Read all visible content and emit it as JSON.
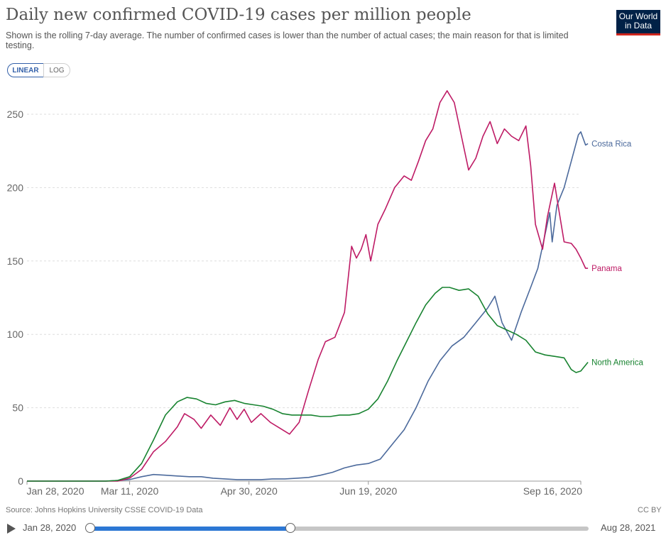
{
  "header": {
    "title": "Daily new confirmed COVID-19 cases per million people",
    "subtitle": "Shown is the rolling 7-day average. The number of confirmed cases is lower than the number of actual cases; the main reason for that is limited testing.",
    "logo_line1": "Our World",
    "logo_line2": "in Data"
  },
  "controls": {
    "linear_label": "LINEAR",
    "log_label": "LOG",
    "active": "LINEAR"
  },
  "footer": {
    "source": "Source: Johns Hopkins University CSSE COVID-19 Data",
    "license": "CC BY"
  },
  "timeline": {
    "start_label": "Jan 28, 2020",
    "end_label": "Aug 28, 2021",
    "range_start": "2020-01-28",
    "range_end": "2021-08-28",
    "selected_start": "2020-01-28",
    "selected_end": "2020-09-16"
  },
  "chart_data": {
    "type": "line",
    "title": "Daily new confirmed COVID-19 cases per million people",
    "xlabel": "",
    "ylabel": "",
    "x_ticks": [
      "Jan 28, 2020",
      "Mar 11, 2020",
      "Apr 30, 2020",
      "Jun 19, 2020",
      "Sep 16, 2020"
    ],
    "x_tick_dates": [
      "2020-01-28",
      "2020-03-11",
      "2020-04-30",
      "2020-06-19",
      "2020-09-16"
    ],
    "xlim": [
      "2020-01-28",
      "2020-09-16"
    ],
    "y_ticks": [
      0,
      50,
      100,
      150,
      200,
      250
    ],
    "ylim": [
      0,
      265
    ],
    "grid": "horizontal-dashed",
    "legend": "line-end labels",
    "series": [
      {
        "name": "Costa Rica",
        "color": "#4c6a9c",
        "points": [
          [
            "2020-01-28",
            0
          ],
          [
            "2020-03-01",
            0
          ],
          [
            "2020-03-06",
            0.5
          ],
          [
            "2020-03-11",
            1
          ],
          [
            "2020-03-16",
            3
          ],
          [
            "2020-03-21",
            4.5
          ],
          [
            "2020-03-26",
            4
          ],
          [
            "2020-03-31",
            3.5
          ],
          [
            "2020-04-05",
            3
          ],
          [
            "2020-04-10",
            3
          ],
          [
            "2020-04-15",
            2
          ],
          [
            "2020-04-20",
            1.5
          ],
          [
            "2020-04-25",
            1
          ],
          [
            "2020-04-30",
            1
          ],
          [
            "2020-05-05",
            1
          ],
          [
            "2020-05-10",
            1.5
          ],
          [
            "2020-05-15",
            1.5
          ],
          [
            "2020-05-20",
            2
          ],
          [
            "2020-05-25",
            2.5
          ],
          [
            "2020-05-30",
            4
          ],
          [
            "2020-06-04",
            6
          ],
          [
            "2020-06-09",
            9
          ],
          [
            "2020-06-14",
            11
          ],
          [
            "2020-06-19",
            12
          ],
          [
            "2020-06-24",
            15
          ],
          [
            "2020-06-29",
            25
          ],
          [
            "2020-07-04",
            35
          ],
          [
            "2020-07-09",
            50
          ],
          [
            "2020-07-14",
            68
          ],
          [
            "2020-07-19",
            82
          ],
          [
            "2020-07-24",
            92
          ],
          [
            "2020-07-29",
            98
          ],
          [
            "2020-08-03",
            108
          ],
          [
            "2020-08-08",
            118
          ],
          [
            "2020-08-11",
            126
          ],
          [
            "2020-08-14",
            108
          ],
          [
            "2020-08-18",
            96
          ],
          [
            "2020-08-22",
            115
          ],
          [
            "2020-08-26",
            132
          ],
          [
            "2020-08-29",
            145
          ],
          [
            "2020-09-01",
            168
          ],
          [
            "2020-09-03",
            183
          ],
          [
            "2020-09-04",
            163
          ],
          [
            "2020-09-06",
            188
          ],
          [
            "2020-09-09",
            200
          ],
          [
            "2020-09-12",
            218
          ],
          [
            "2020-09-15",
            236
          ],
          [
            "2020-09-16",
            238
          ],
          [
            "2020-09-18",
            229
          ],
          [
            "2020-09-19",
            230
          ]
        ]
      },
      {
        "name": "Panama",
        "color": "#be1b65",
        "points": [
          [
            "2020-01-28",
            0
          ],
          [
            "2020-03-06",
            0
          ],
          [
            "2020-03-11",
            2
          ],
          [
            "2020-03-16",
            8
          ],
          [
            "2020-03-21",
            20
          ],
          [
            "2020-03-26",
            27
          ],
          [
            "2020-03-31",
            37
          ],
          [
            "2020-04-03",
            46
          ],
          [
            "2020-04-07",
            42
          ],
          [
            "2020-04-10",
            36
          ],
          [
            "2020-04-14",
            45
          ],
          [
            "2020-04-18",
            38
          ],
          [
            "2020-04-22",
            50
          ],
          [
            "2020-04-25",
            42
          ],
          [
            "2020-04-28",
            49
          ],
          [
            "2020-05-01",
            40
          ],
          [
            "2020-05-05",
            46
          ],
          [
            "2020-05-09",
            40
          ],
          [
            "2020-05-13",
            36
          ],
          [
            "2020-05-17",
            32
          ],
          [
            "2020-05-21",
            40
          ],
          [
            "2020-05-25",
            62
          ],
          [
            "2020-05-29",
            83
          ],
          [
            "2020-06-01",
            95
          ],
          [
            "2020-06-05",
            98
          ],
          [
            "2020-06-09",
            115
          ],
          [
            "2020-06-12",
            160
          ],
          [
            "2020-06-14",
            152
          ],
          [
            "2020-06-16",
            158
          ],
          [
            "2020-06-18",
            168
          ],
          [
            "2020-06-20",
            150
          ],
          [
            "2020-06-23",
            175
          ],
          [
            "2020-06-26",
            185
          ],
          [
            "2020-06-30",
            200
          ],
          [
            "2020-07-04",
            208
          ],
          [
            "2020-07-07",
            205
          ],
          [
            "2020-07-10",
            218
          ],
          [
            "2020-07-13",
            232
          ],
          [
            "2020-07-16",
            240
          ],
          [
            "2020-07-19",
            258
          ],
          [
            "2020-07-22",
            266
          ],
          [
            "2020-07-25",
            258
          ],
          [
            "2020-07-28",
            235
          ],
          [
            "2020-07-31",
            212
          ],
          [
            "2020-08-03",
            220
          ],
          [
            "2020-08-06",
            235
          ],
          [
            "2020-08-09",
            245
          ],
          [
            "2020-08-12",
            230
          ],
          [
            "2020-08-15",
            240
          ],
          [
            "2020-08-18",
            235
          ],
          [
            "2020-08-21",
            232
          ],
          [
            "2020-08-24",
            242
          ],
          [
            "2020-08-26",
            215
          ],
          [
            "2020-08-28",
            175
          ],
          [
            "2020-08-31",
            158
          ],
          [
            "2020-09-02",
            180
          ],
          [
            "2020-09-05",
            203
          ],
          [
            "2020-09-07",
            183
          ],
          [
            "2020-09-09",
            163
          ],
          [
            "2020-09-12",
            162
          ],
          [
            "2020-09-14",
            158
          ],
          [
            "2020-09-16",
            152
          ],
          [
            "2020-09-18",
            145
          ],
          [
            "2020-09-19",
            145
          ]
        ]
      },
      {
        "name": "North America",
        "color": "#188330",
        "points": [
          [
            "2020-01-28",
            0
          ],
          [
            "2020-03-01",
            0
          ],
          [
            "2020-03-06",
            0.5
          ],
          [
            "2020-03-11",
            3
          ],
          [
            "2020-03-16",
            12
          ],
          [
            "2020-03-21",
            28
          ],
          [
            "2020-03-26",
            45
          ],
          [
            "2020-03-31",
            54
          ],
          [
            "2020-04-04",
            57
          ],
          [
            "2020-04-08",
            56
          ],
          [
            "2020-04-12",
            53
          ],
          [
            "2020-04-16",
            52
          ],
          [
            "2020-04-20",
            54
          ],
          [
            "2020-04-24",
            55
          ],
          [
            "2020-04-28",
            53
          ],
          [
            "2020-05-02",
            52
          ],
          [
            "2020-05-06",
            51
          ],
          [
            "2020-05-10",
            49
          ],
          [
            "2020-05-14",
            46
          ],
          [
            "2020-05-18",
            45
          ],
          [
            "2020-05-22",
            45
          ],
          [
            "2020-05-26",
            45
          ],
          [
            "2020-05-30",
            44
          ],
          [
            "2020-06-03",
            44
          ],
          [
            "2020-06-07",
            45
          ],
          [
            "2020-06-11",
            45
          ],
          [
            "2020-06-15",
            46
          ],
          [
            "2020-06-19",
            49
          ],
          [
            "2020-06-23",
            56
          ],
          [
            "2020-06-27",
            68
          ],
          [
            "2020-07-01",
            82
          ],
          [
            "2020-07-05",
            95
          ],
          [
            "2020-07-09",
            108
          ],
          [
            "2020-07-13",
            120
          ],
          [
            "2020-07-17",
            128
          ],
          [
            "2020-07-20",
            132
          ],
          [
            "2020-07-23",
            132
          ],
          [
            "2020-07-27",
            130
          ],
          [
            "2020-07-31",
            131
          ],
          [
            "2020-08-04",
            126
          ],
          [
            "2020-08-08",
            114
          ],
          [
            "2020-08-12",
            106
          ],
          [
            "2020-08-16",
            103
          ],
          [
            "2020-08-20",
            100
          ],
          [
            "2020-08-24",
            96
          ],
          [
            "2020-08-28",
            88
          ],
          [
            "2020-09-01",
            86
          ],
          [
            "2020-09-05",
            85
          ],
          [
            "2020-09-09",
            84
          ],
          [
            "2020-09-12",
            76
          ],
          [
            "2020-09-14",
            74
          ],
          [
            "2020-09-16",
            75
          ],
          [
            "2020-09-18",
            79
          ],
          [
            "2020-09-19",
            81
          ]
        ]
      }
    ]
  }
}
